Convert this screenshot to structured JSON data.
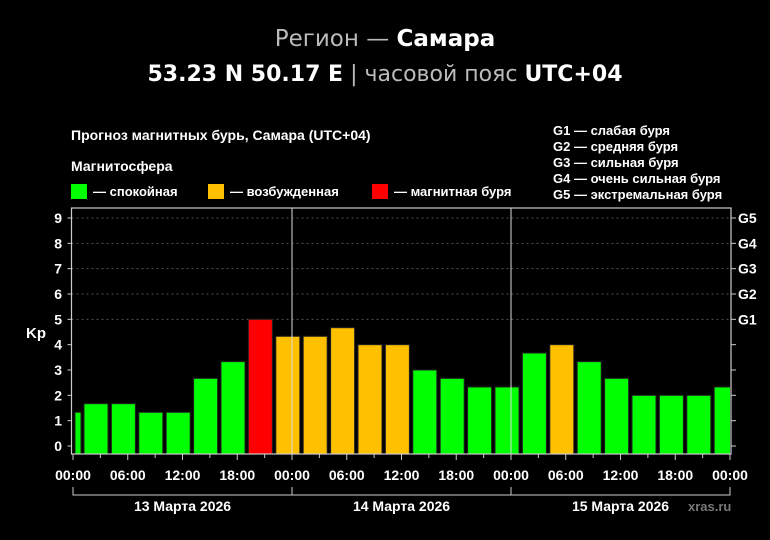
{
  "header": {
    "region_label": "Регион",
    "dash": "—",
    "region_name": "Самара",
    "coords": "53.23 N 50.17 E",
    "separator": "|",
    "tz_label": "часовой пояс",
    "tz_value": "UTC+04"
  },
  "chart_data": {
    "type": "bar",
    "title": "Прогноз магнитных бурь, Самара (UTC+04)",
    "legend_title": "Магнитосфера",
    "legend": [
      {
        "label": "— спокойная",
        "color": "#00ff00"
      },
      {
        "label": "— возбужденная",
        "color": "#ffc000"
      },
      {
        "label": "— магнитная буря",
        "color": "#ff0000"
      }
    ],
    "g_legend": [
      "G1 — слабая буря",
      "G2 — средняя буря",
      "G3 — сильная буря",
      "G4 — очень сильная буря",
      "G5 — экстремальная буря"
    ],
    "ylabel": "Kp",
    "ylim": [
      0,
      9
    ],
    "yticks": [
      "0",
      "1",
      "2",
      "3",
      "4",
      "5",
      "6",
      "7",
      "8",
      "9"
    ],
    "right_ticks": [
      {
        "label": "G1",
        "kp": 5
      },
      {
        "label": "G2",
        "kp": 6
      },
      {
        "label": "G3",
        "kp": 7
      },
      {
        "label": "G4",
        "kp": 8
      },
      {
        "label": "G5",
        "kp": 9
      }
    ],
    "grid": "dotted at Kp 5–9",
    "xtick_labels": [
      "00:00",
      "06:00",
      "12:00",
      "18:00",
      "00:00",
      "06:00",
      "12:00",
      "18:00",
      "00:00",
      "06:00",
      "12:00",
      "18:00",
      "00:00"
    ],
    "days": [
      "13 Марта 2026",
      "14 Марта 2026",
      "15 Марта 2026"
    ],
    "values": [
      1.33,
      1.67,
      1.67,
      1.33,
      1.33,
      2.67,
      3.33,
      5,
      4.33,
      4.33,
      4.67,
      4,
      4,
      3,
      2.67,
      2.33,
      2.33,
      3.67,
      4,
      3.33,
      2.67,
      2,
      2,
      2,
      2.33
    ],
    "levels": [
      "calm",
      "calm",
      "calm",
      "calm",
      "calm",
      "calm",
      "calm",
      "storm",
      "active",
      "active",
      "active",
      "active",
      "active",
      "calm",
      "calm",
      "calm",
      "calm",
      "calm",
      "active",
      "calm",
      "calm",
      "calm",
      "calm",
      "calm",
      "calm"
    ],
    "level_colors": {
      "calm": "#00ff00",
      "active": "#ffc000",
      "storm": "#ff0000"
    }
  },
  "watermark": "xras.ru"
}
